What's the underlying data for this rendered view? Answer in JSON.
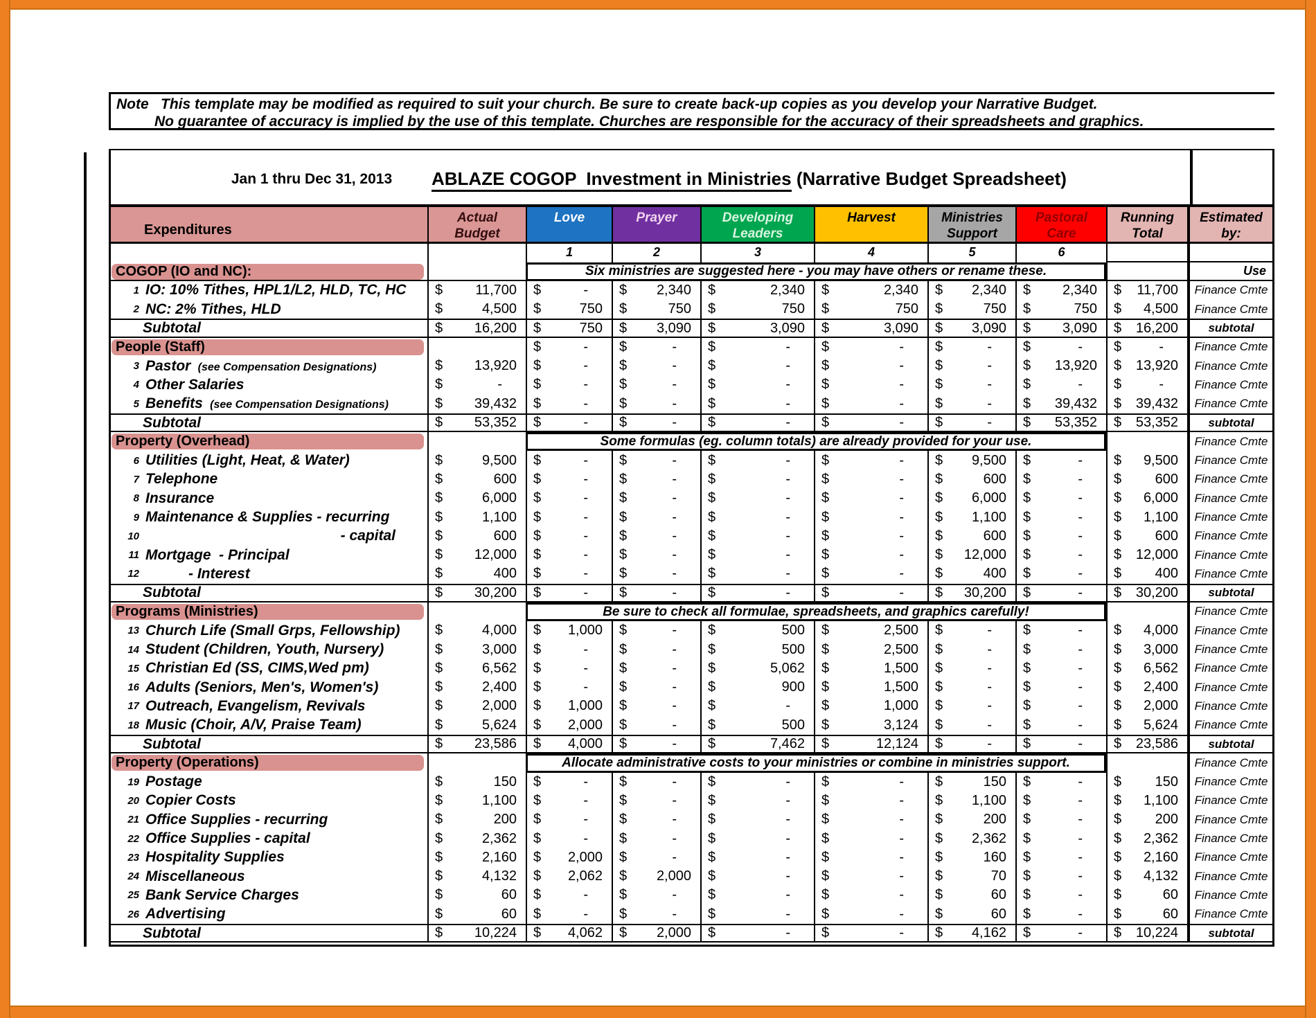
{
  "frame": {
    "color": "#EE8021"
  },
  "note_box": {
    "label": "Note",
    "line1": "This template may be modified as required to suit your church.  Be sure to create back-up copies as you develop your Narrative Budget.",
    "line2": "No guarantee of accuracy is implied by the use of this template.  Churches are responsible for the accuracy of their spreadsheets and graphics."
  },
  "title": {
    "date_range": "Jan 1 thru Dec 31, 2013",
    "main": "ABLAZE COGOP  Investment in Ministries",
    "suffix": " (Narrative Budget Spreadsheet)"
  },
  "table": {
    "columns": [
      {
        "key": "label",
        "label": "Expenditures",
        "bg": "#D99694",
        "fg": "#000000"
      },
      {
        "key": "ab",
        "label": "Actual\nBudget",
        "bg": "#D99694",
        "fg": "#330D0D"
      },
      {
        "key": "lv",
        "label": "Love",
        "num": "1",
        "bg": "#1E73C2",
        "fg": "#FFFFFF"
      },
      {
        "key": "pr",
        "label": "Prayer",
        "num": "2",
        "bg": "#7030A0",
        "fg": "#F2D5EF"
      },
      {
        "key": "dl",
        "label": "Developing\nLeaders",
        "num": "3",
        "bg": "#00A550",
        "fg": "#D9F4DF"
      },
      {
        "key": "hv",
        "label": "Harvest",
        "num": "4",
        "bg": "#FFC000",
        "fg": "#000000"
      },
      {
        "key": "ms",
        "label": "Ministries\nSupport",
        "num": "5",
        "bg": "#A6A6A6",
        "fg": "#000000"
      },
      {
        "key": "pc",
        "label": "Pastoral\nCare",
        "num": "6",
        "bg": "#FE0000",
        "fg": "#900000"
      },
      {
        "key": "rt",
        "label": "Running\nTotal",
        "bg": "#E2B4B2",
        "fg": "#000000"
      },
      {
        "key": "est",
        "label": "Estimated\nby:",
        "bg": "#E2B4B2",
        "fg": "#000000"
      }
    ],
    "rows": [
      {
        "t": "section",
        "l": "COGOP (IO and NC):",
        "note": "Six ministries are suggested here - you may have others or rename these.",
        "est": "Use"
      },
      {
        "t": "data",
        "n": "1",
        "l": "IO: 10% Tithes, HPL1/L2, HLD, TC, HC",
        "ab": "11,700",
        "lv": "-",
        "pr": "2,340",
        "dl": "2,340",
        "hv": "2,340",
        "ms": "2,340",
        "pc": "2,340",
        "rt": "11,700",
        "est": "Finance Cmte"
      },
      {
        "t": "data",
        "n": "2",
        "l": "NC: 2% Tithes, HLD",
        "ab": "4,500",
        "lv": "750",
        "pr": "750",
        "dl": "750",
        "hv": "750",
        "ms": "750",
        "pc": "750",
        "rt": "4,500",
        "est": "Finance Cmte"
      },
      {
        "t": "subtotal",
        "l": "Subtotal",
        "ab": "16,200",
        "lv": "750",
        "pr": "3,090",
        "dl": "3,090",
        "hv": "3,090",
        "ms": "3,090",
        "pc": "3,090",
        "rt": "16,200",
        "est": "subtotal"
      },
      {
        "t": "section",
        "l": "People (Staff)",
        "lv": "-",
        "pr": "-",
        "dl": "-",
        "hv": "-",
        "ms": "-",
        "pc": "-",
        "rt": "-",
        "est": "Finance Cmte"
      },
      {
        "t": "data",
        "n": "3",
        "l": "Pastor ",
        "ln": "(see Compensation Designations)",
        "ab": "13,920",
        "lv": "-",
        "pr": "-",
        "dl": "-",
        "hv": "-",
        "ms": "-",
        "pc": "13,920",
        "rt": "13,920",
        "est": "Finance Cmte"
      },
      {
        "t": "data",
        "n": "4",
        "l": "Other Salaries",
        "ab": "-",
        "lv": "-",
        "pr": "-",
        "dl": "-",
        "hv": "-",
        "ms": "-",
        "pc": "-",
        "rt": "-",
        "est": "Finance Cmte"
      },
      {
        "t": "data",
        "n": "5",
        "l": "Benefits ",
        "ln": "(see Compensation Designations)",
        "ab": "39,432",
        "lv": "-",
        "pr": "-",
        "dl": "-",
        "hv": "-",
        "ms": "-",
        "pc": "39,432",
        "rt": "39,432",
        "est": "Finance Cmte"
      },
      {
        "t": "subtotal",
        "l": "Subtotal",
        "ab": "53,352",
        "lv": "-",
        "pr": "-",
        "dl": "-",
        "hv": "-",
        "ms": "-",
        "pc": "53,352",
        "rt": "53,352",
        "est": "subtotal"
      },
      {
        "t": "section",
        "l": "Property (Overhead)",
        "note": "Some formulas (eg. column totals) are already provided for your use.",
        "est": "Finance Cmte"
      },
      {
        "t": "data",
        "n": "6",
        "l": "Utilities (Light, Heat, & Water)",
        "ab": "9,500",
        "lv": "-",
        "pr": "-",
        "dl": "-",
        "hv": "-",
        "ms": "9,500",
        "pc": "-",
        "rt": "9,500",
        "est": "Finance Cmte"
      },
      {
        "t": "data",
        "n": "7",
        "l": "Telephone",
        "ab": "600",
        "lv": "-",
        "pr": "-",
        "dl": "-",
        "hv": "-",
        "ms": "600",
        "pc": "-",
        "rt": "600",
        "est": "Finance Cmte"
      },
      {
        "t": "data",
        "n": "8",
        "l": "Insurance",
        "ab": "6,000",
        "lv": "-",
        "pr": "-",
        "dl": "-",
        "hv": "-",
        "ms": "6,000",
        "pc": "-",
        "rt": "6,000",
        "est": "Finance Cmte"
      },
      {
        "t": "data",
        "n": "9",
        "l": "Maintenance & Supplies - recurring",
        "ab": "1,100",
        "lv": "-",
        "pr": "-",
        "dl": "-",
        "hv": "-",
        "ms": "1,100",
        "pc": "-",
        "rt": "1,100",
        "est": "Finance Cmte"
      },
      {
        "t": "data",
        "n": "10",
        "l": "- capital",
        "la": "ra",
        "ab": "600",
        "lv": "-",
        "pr": "-",
        "dl": "-",
        "hv": "-",
        "ms": "600",
        "pc": "-",
        "rt": "600",
        "est": "Finance Cmte"
      },
      {
        "t": "data",
        "n": "11",
        "l": "Mortgage  - Principal",
        "ab": "12,000",
        "lv": "-",
        "pr": "-",
        "dl": "-",
        "hv": "-",
        "ms": "12,000",
        "pc": "-",
        "rt": "12,000",
        "est": "Finance Cmte"
      },
      {
        "t": "data",
        "n": "12",
        "l": "- Interest",
        "la": "ind",
        "ab": "400",
        "lv": "-",
        "pr": "-",
        "dl": "-",
        "hv": "-",
        "ms": "400",
        "pc": "-",
        "rt": "400",
        "est": "Finance Cmte"
      },
      {
        "t": "subtotal",
        "l": "Subtotal",
        "ab": "30,200",
        "lv": "-",
        "pr": "-",
        "dl": "-",
        "hv": "-",
        "ms": "30,200",
        "pc": "-",
        "rt": "30,200",
        "est": "subtotal"
      },
      {
        "t": "section",
        "l": "Programs (Ministries)",
        "note": "Be sure to check all formulae, spreadsheets, and graphics carefully!",
        "est": "Finance Cmte"
      },
      {
        "t": "data",
        "n": "13",
        "l": "Church Life (Small Grps, Fellowship)",
        "ab": "4,000",
        "lv": "1,000",
        "pr": "-",
        "dl": "500",
        "hv": "2,500",
        "ms": "-",
        "pc": "-",
        "rt": "4,000",
        "est": "Finance Cmte"
      },
      {
        "t": "data",
        "n": "14",
        "l": "Student (Children, Youth, Nursery)",
        "ab": "3,000",
        "lv": "-",
        "pr": "-",
        "dl": "500",
        "hv": "2,500",
        "ms": "-",
        "pc": "-",
        "rt": "3,000",
        "est": "Finance Cmte"
      },
      {
        "t": "data",
        "n": "15",
        "l": "Christian Ed (SS, CIMS,Wed pm)",
        "ab": "6,562",
        "lv": "-",
        "pr": "-",
        "dl": "5,062",
        "hv": "1,500",
        "ms": "-",
        "pc": "-",
        "rt": "6,562",
        "est": "Finance Cmte"
      },
      {
        "t": "data",
        "n": "16",
        "l": "Adults (Seniors, Men's, Women's)",
        "ab": "2,400",
        "lv": "-",
        "pr": "-",
        "dl": "900",
        "hv": "1,500",
        "ms": "-",
        "pc": "-",
        "rt": "2,400",
        "est": "Finance Cmte"
      },
      {
        "t": "data",
        "n": "17",
        "l": "Outreach, Evangelism, Revivals",
        "ab": "2,000",
        "lv": "1,000",
        "pr": "-",
        "dl": "-",
        "hv": "1,000",
        "ms": "-",
        "pc": "-",
        "rt": "2,000",
        "est": "Finance Cmte"
      },
      {
        "t": "data",
        "n": "18",
        "l": "Music (Choir, A/V, Praise Team)",
        "ab": "5,624",
        "lv": "2,000",
        "pr": "-",
        "dl": "500",
        "hv": "3,124",
        "ms": "-",
        "pc": "-",
        "rt": "5,624",
        "est": "Finance Cmte"
      },
      {
        "t": "subtotal",
        "l": "Subtotal",
        "ab": "23,586",
        "lv": "4,000",
        "pr": "-",
        "dl": "7,462",
        "hv": "12,124",
        "ms": "-",
        "pc": "-",
        "rt": "23,586",
        "est": "subtotal"
      },
      {
        "t": "section",
        "l": "Property (Operations)",
        "note": "Allocate administrative costs to your ministries or combine in ministries support.",
        "est": "Finance Cmte"
      },
      {
        "t": "data",
        "n": "19",
        "l": "Postage",
        "ab": "150",
        "lv": "-",
        "pr": "-",
        "dl": "-",
        "hv": "-",
        "ms": "150",
        "pc": "-",
        "rt": "150",
        "est": "Finance Cmte"
      },
      {
        "t": "data",
        "n": "20",
        "l": "Copier Costs",
        "ab": "1,100",
        "lv": "-",
        "pr": "-",
        "dl": "-",
        "hv": "-",
        "ms": "1,100",
        "pc": "-",
        "rt": "1,100",
        "est": "Finance Cmte"
      },
      {
        "t": "data",
        "n": "21",
        "l": "Office Supplies - recurring",
        "ab": "200",
        "lv": "-",
        "pr": "-",
        "dl": "-",
        "hv": "-",
        "ms": "200",
        "pc": "-",
        "rt": "200",
        "est": "Finance Cmte"
      },
      {
        "t": "data",
        "n": "22",
        "l": "Office Supplies - capital",
        "ab": "2,362",
        "lv": "-",
        "pr": "-",
        "dl": "-",
        "hv": "-",
        "ms": "2,362",
        "pc": "-",
        "rt": "2,362",
        "est": "Finance Cmte"
      },
      {
        "t": "data",
        "n": "23",
        "l": "Hospitality Supplies",
        "ab": "2,160",
        "lv": "2,000",
        "pr": "-",
        "dl": "-",
        "hv": "-",
        "ms": "160",
        "pc": "-",
        "rt": "2,160",
        "est": "Finance Cmte"
      },
      {
        "t": "data",
        "n": "24",
        "l": "Miscellaneous",
        "ab": "4,132",
        "lv": "2,062",
        "pr": "2,000",
        "dl": "-",
        "hv": "-",
        "ms": "70",
        "pc": "-",
        "rt": "4,132",
        "est": "Finance Cmte"
      },
      {
        "t": "data",
        "n": "25",
        "l": "Bank Service Charges",
        "ab": "60",
        "lv": "-",
        "pr": "-",
        "dl": "-",
        "hv": "-",
        "ms": "60",
        "pc": "-",
        "rt": "60",
        "est": "Finance Cmte"
      },
      {
        "t": "data",
        "n": "26",
        "l": "Advertising",
        "ab": "60",
        "lv": "-",
        "pr": "-",
        "dl": "-",
        "hv": "-",
        "ms": "60",
        "pc": "-",
        "rt": "60",
        "est": "Finance Cmte"
      },
      {
        "t": "subtotal",
        "l": "Subtotal",
        "ab": "10,224",
        "lv": "4,062",
        "pr": "2,000",
        "dl": "-",
        "hv": "-",
        "ms": "4,162",
        "pc": "-",
        "rt": "10,224",
        "est": "subtotal"
      }
    ]
  }
}
